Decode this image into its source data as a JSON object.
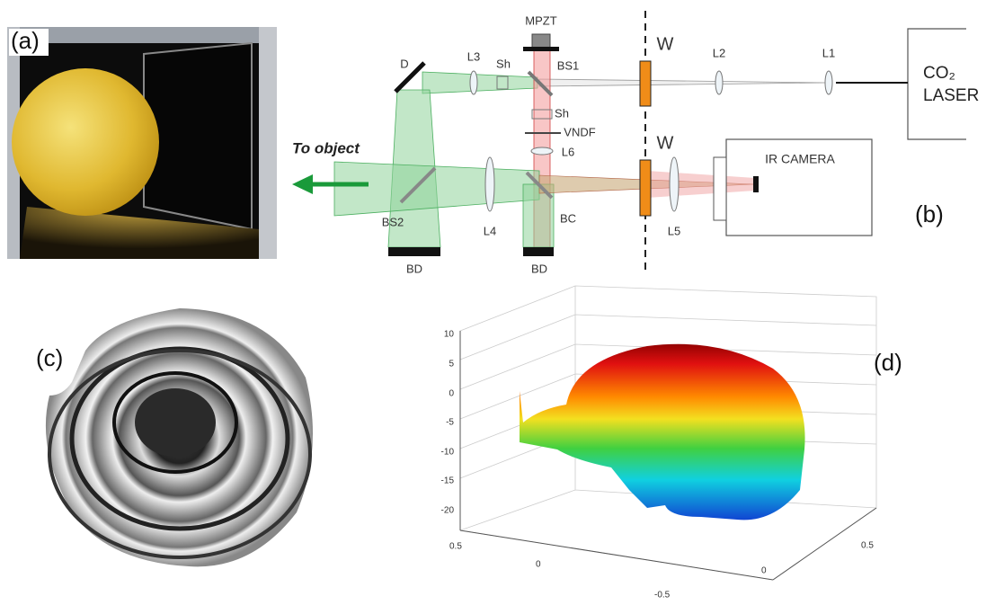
{
  "panel_labels": [
    "(a)",
    "(b)",
    "(c)",
    "(d)"
  ],
  "diagram": {
    "labels": [
      "MPZT",
      "D",
      "L3",
      "Sh",
      "BS1",
      "W",
      "L2",
      "L1",
      "Sh",
      "VNDF",
      "L6",
      "W",
      "IR CAMERA",
      "BS2",
      "L4",
      "BC",
      "L5",
      "BD",
      "BD"
    ],
    "laser": [
      "CO₂",
      "LASER"
    ],
    "arrow_label": "To object"
  },
  "plot_3d": {
    "z_ticks": [
      10,
      5,
      0,
      -5,
      -10,
      -15,
      -20
    ],
    "x_ticks": [
      0.5,
      0,
      -0.5
    ],
    "y_ticks": [
      0,
      0.5
    ]
  }
}
